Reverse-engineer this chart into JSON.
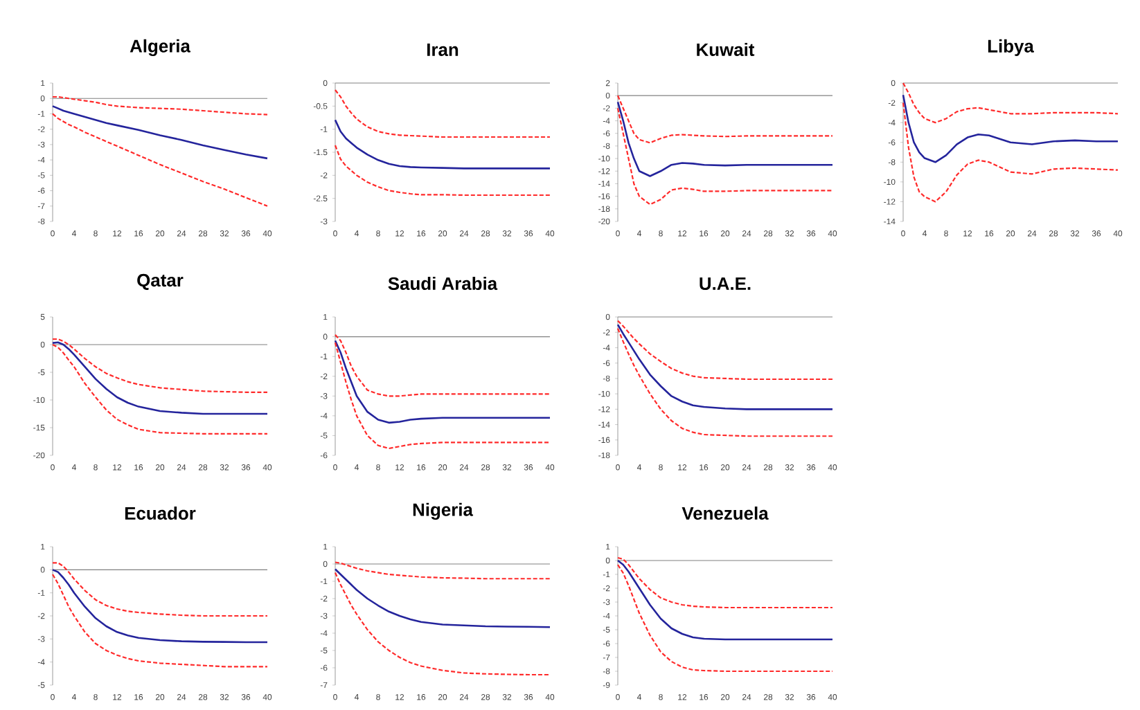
{
  "chart_data": [
    {
      "type": "line",
      "title": "Algeria",
      "x": [
        0,
        1,
        2,
        3,
        4,
        6,
        8,
        10,
        12,
        14,
        16,
        20,
        24,
        28,
        32,
        36,
        40
      ],
      "xlim": [
        0,
        40
      ],
      "xticks": [
        0,
        4,
        8,
        12,
        16,
        20,
        24,
        28,
        32,
        36,
        40
      ],
      "ylim": [
        -8,
        1
      ],
      "yticks": [
        -8,
        -7,
        -6,
        -5,
        -4,
        -3,
        -2,
        -1,
        0,
        1
      ],
      "ref_lines": [
        {
          "axis": "y",
          "value": 0,
          "color": "#808080"
        }
      ],
      "series": [
        {
          "color": "#ff2a2a",
          "line_style": "dashed",
          "values": [
            0.1,
            0.1,
            0.05,
            0,
            -0.05,
            -0.15,
            -0.25,
            -0.4,
            -0.5,
            -0.55,
            -0.6,
            -0.65,
            -0.7,
            -0.8,
            -0.9,
            -1.0,
            -1.05
          ]
        },
        {
          "color": "#24249c",
          "line_style": "solid",
          "values": [
            -0.5,
            -0.65,
            -0.8,
            -0.9,
            -1.0,
            -1.2,
            -1.4,
            -1.6,
            -1.75,
            -1.9,
            -2.05,
            -2.4,
            -2.7,
            -3.05,
            -3.35,
            -3.65,
            -3.9
          ]
        },
        {
          "color": "#ff2a2a",
          "line_style": "dashed",
          "values": [
            -1.0,
            -1.3,
            -1.5,
            -1.7,
            -1.85,
            -2.2,
            -2.5,
            -2.8,
            -3.1,
            -3.4,
            -3.7,
            -4.3,
            -4.85,
            -5.4,
            -5.9,
            -6.45,
            -7.0
          ]
        }
      ]
    },
    {
      "type": "line",
      "title": "Iran",
      "x": [
        0,
        1,
        2,
        3,
        4,
        6,
        8,
        10,
        12,
        14,
        16,
        20,
        24,
        28,
        32,
        36,
        40
      ],
      "xlim": [
        0,
        40
      ],
      "xticks": [
        0,
        4,
        8,
        12,
        16,
        20,
        24,
        28,
        32,
        36,
        40
      ],
      "ylim": [
        -3,
        0
      ],
      "yticks": [
        -3,
        -2.5,
        -2,
        -1.5,
        -1,
        -0.5,
        0
      ],
      "ref_lines": [
        {
          "axis": "y",
          "value": 0,
          "color": "#808080"
        }
      ],
      "series": [
        {
          "color": "#ff2a2a",
          "line_style": "dashed",
          "values": [
            -0.15,
            -0.3,
            -0.5,
            -0.65,
            -0.78,
            -0.95,
            -1.05,
            -1.1,
            -1.13,
            -1.14,
            -1.15,
            -1.17,
            -1.17,
            -1.17,
            -1.17,
            -1.17,
            -1.17
          ]
        },
        {
          "color": "#24249c",
          "line_style": "solid",
          "values": [
            -0.8,
            -1.05,
            -1.2,
            -1.3,
            -1.4,
            -1.55,
            -1.67,
            -1.75,
            -1.8,
            -1.82,
            -1.83,
            -1.84,
            -1.85,
            -1.85,
            -1.85,
            -1.85,
            -1.85
          ]
        },
        {
          "color": "#ff2a2a",
          "line_style": "dashed",
          "values": [
            -1.35,
            -1.65,
            -1.8,
            -1.9,
            -2.0,
            -2.15,
            -2.25,
            -2.33,
            -2.37,
            -2.4,
            -2.42,
            -2.42,
            -2.43,
            -2.43,
            -2.43,
            -2.43,
            -2.43
          ]
        }
      ]
    },
    {
      "type": "line",
      "title": "Kuwait",
      "x": [
        0,
        1,
        2,
        3,
        4,
        6,
        8,
        10,
        12,
        14,
        16,
        20,
        24,
        28,
        32,
        36,
        40
      ],
      "xlim": [
        0,
        40
      ],
      "xticks": [
        0,
        4,
        8,
        12,
        16,
        20,
        24,
        28,
        32,
        36,
        40
      ],
      "ylim": [
        -20,
        2
      ],
      "yticks": [
        -20,
        -18,
        -16,
        -14,
        -12,
        -10,
        -8,
        -6,
        -4,
        -2,
        0,
        2
      ],
      "ref_lines": [
        {
          "axis": "y",
          "value": 0,
          "color": "#808080"
        }
      ],
      "series": [
        {
          "color": "#ff2a2a",
          "line_style": "dashed",
          "values": [
            0,
            -2,
            -4,
            -6,
            -7,
            -7.5,
            -6.8,
            -6.3,
            -6.2,
            -6.3,
            -6.4,
            -6.5,
            -6.4,
            -6.4,
            -6.4,
            -6.4,
            -6.4
          ]
        },
        {
          "color": "#24249c",
          "line_style": "solid",
          "values": [
            -1,
            -4,
            -7.5,
            -10,
            -12,
            -12.8,
            -12,
            -11,
            -10.7,
            -10.8,
            -11,
            -11.1,
            -11,
            -11,
            -11,
            -11,
            -11
          ]
        },
        {
          "color": "#ff2a2a",
          "line_style": "dashed",
          "values": [
            -2,
            -6,
            -10,
            -14,
            -16,
            -17.3,
            -16.5,
            -15,
            -14.7,
            -14.9,
            -15.2,
            -15.2,
            -15.1,
            -15.1,
            -15.1,
            -15.1,
            -15.1
          ]
        }
      ]
    },
    {
      "type": "line",
      "title": "Libya",
      "x": [
        0,
        1,
        2,
        3,
        4,
        6,
        8,
        10,
        12,
        14,
        16,
        20,
        24,
        28,
        32,
        36,
        40
      ],
      "xlim": [
        0,
        40
      ],
      "xticks": [
        0,
        4,
        8,
        12,
        16,
        20,
        24,
        28,
        32,
        36,
        40
      ],
      "ylim": [
        -14,
        0
      ],
      "yticks": [
        -14,
        -12,
        -10,
        -8,
        -6,
        -4,
        -2,
        0
      ],
      "ref_lines": [
        {
          "axis": "y",
          "value": 0,
          "color": "#808080"
        }
      ],
      "series": [
        {
          "color": "#ff2a2a",
          "line_style": "dashed",
          "values": [
            0,
            -1,
            -2.2,
            -3,
            -3.6,
            -4,
            -3.6,
            -2.9,
            -2.6,
            -2.5,
            -2.7,
            -3.1,
            -3.1,
            -3,
            -3,
            -3,
            -3.1
          ]
        },
        {
          "color": "#24249c",
          "line_style": "solid",
          "values": [
            -1.2,
            -4,
            -6,
            -7,
            -7.6,
            -8,
            -7.3,
            -6.2,
            -5.5,
            -5.2,
            -5.3,
            -6,
            -6.2,
            -5.9,
            -5.8,
            -5.9,
            -5.9
          ]
        },
        {
          "color": "#ff2a2a",
          "line_style": "dashed",
          "values": [
            -2,
            -6.5,
            -9.5,
            -11,
            -11.5,
            -12,
            -11,
            -9.3,
            -8.2,
            -7.8,
            -8,
            -9,
            -9.2,
            -8.7,
            -8.6,
            -8.7,
            -8.8
          ]
        }
      ]
    },
    {
      "type": "line",
      "title": "Qatar",
      "x": [
        0,
        1,
        2,
        3,
        4,
        6,
        8,
        10,
        12,
        14,
        16,
        20,
        24,
        28,
        32,
        36,
        40
      ],
      "xlim": [
        0,
        40
      ],
      "xticks": [
        0,
        4,
        8,
        12,
        16,
        20,
        24,
        28,
        32,
        36,
        40
      ],
      "ylim": [
        -20,
        5
      ],
      "yticks": [
        -20,
        -15,
        -10,
        -5,
        0,
        5
      ],
      "ref_lines": [
        {
          "axis": "y",
          "value": 0,
          "color": "#808080"
        }
      ],
      "series": [
        {
          "color": "#ff2a2a",
          "line_style": "dashed",
          "values": [
            1,
            1,
            0.6,
            0,
            -0.8,
            -2.5,
            -4,
            -5.2,
            -6,
            -6.7,
            -7.2,
            -7.8,
            -8.1,
            -8.4,
            -8.5,
            -8.6,
            -8.6
          ]
        },
        {
          "color": "#24249c",
          "line_style": "solid",
          "values": [
            0.3,
            0.4,
            0,
            -0.8,
            -1.8,
            -4,
            -6.2,
            -8,
            -9.5,
            -10.5,
            -11.2,
            -12,
            -12.3,
            -12.5,
            -12.5,
            -12.5,
            -12.5
          ]
        },
        {
          "color": "#ff2a2a",
          "line_style": "dashed",
          "values": [
            0,
            -0.5,
            -1.5,
            -2.8,
            -4,
            -7,
            -9.5,
            -11.8,
            -13.5,
            -14.5,
            -15.3,
            -15.9,
            -16,
            -16.1,
            -16.1,
            -16.1,
            -16.1
          ]
        }
      ]
    },
    {
      "type": "line",
      "title": "Saudi Arabia",
      "x": [
        0,
        1,
        2,
        3,
        4,
        6,
        8,
        10,
        12,
        14,
        16,
        20,
        24,
        28,
        32,
        36,
        40
      ],
      "xlim": [
        0,
        40
      ],
      "xticks": [
        0,
        4,
        8,
        12,
        16,
        20,
        24,
        28,
        32,
        36,
        40
      ],
      "ylim": [
        -6,
        1
      ],
      "yticks": [
        -6,
        -5,
        -4,
        -3,
        -2,
        -1,
        0,
        1
      ],
      "ref_lines": [
        {
          "axis": "y",
          "value": 0,
          "color": "#808080"
        }
      ],
      "series": [
        {
          "color": "#ff2a2a",
          "line_style": "dashed",
          "values": [
            0.1,
            -0.2,
            -0.8,
            -1.5,
            -2,
            -2.7,
            -2.9,
            -3,
            -3,
            -2.95,
            -2.9,
            -2.9,
            -2.9,
            -2.9,
            -2.9,
            -2.9,
            -2.9
          ]
        },
        {
          "color": "#24249c",
          "line_style": "solid",
          "values": [
            -0.2,
            -0.8,
            -1.6,
            -2.3,
            -3,
            -3.8,
            -4.2,
            -4.35,
            -4.3,
            -4.2,
            -4.15,
            -4.1,
            -4.1,
            -4.1,
            -4.1,
            -4.1,
            -4.1
          ]
        },
        {
          "color": "#ff2a2a",
          "line_style": "dashed",
          "values": [
            -0.3,
            -1.3,
            -2.3,
            -3.2,
            -4,
            -5,
            -5.5,
            -5.65,
            -5.55,
            -5.45,
            -5.4,
            -5.35,
            -5.35,
            -5.35,
            -5.35,
            -5.35,
            -5.35
          ]
        }
      ]
    },
    {
      "type": "line",
      "title": "U.A.E.",
      "x": [
        0,
        1,
        2,
        3,
        4,
        6,
        8,
        10,
        12,
        14,
        16,
        20,
        24,
        28,
        32,
        36,
        40
      ],
      "xlim": [
        0,
        40
      ],
      "xticks": [
        0,
        4,
        8,
        12,
        16,
        20,
        24,
        28,
        32,
        36,
        40
      ],
      "ylim": [
        -18,
        0
      ],
      "yticks": [
        -18,
        -16,
        -14,
        -12,
        -10,
        -8,
        -6,
        -4,
        -2,
        0
      ],
      "ref_lines": [
        {
          "axis": "y",
          "value": 0,
          "color": "#808080"
        }
      ],
      "series": [
        {
          "color": "#ff2a2a",
          "line_style": "dashed",
          "values": [
            -0.5,
            -1.2,
            -2,
            -2.8,
            -3.5,
            -4.8,
            -5.8,
            -6.7,
            -7.3,
            -7.7,
            -7.9,
            -8,
            -8.1,
            -8.1,
            -8.1,
            -8.1,
            -8.1
          ]
        },
        {
          "color": "#24249c",
          "line_style": "solid",
          "values": [
            -1,
            -2.2,
            -3.3,
            -4.4,
            -5.5,
            -7.5,
            -9,
            -10.3,
            -11,
            -11.5,
            -11.7,
            -11.9,
            -12,
            -12,
            -12,
            -12,
            -12
          ]
        },
        {
          "color": "#ff2a2a",
          "line_style": "dashed",
          "values": [
            -1.5,
            -3.2,
            -4.8,
            -6.3,
            -7.6,
            -10,
            -12,
            -13.5,
            -14.5,
            -15,
            -15.3,
            -15.4,
            -15.5,
            -15.5,
            -15.5,
            -15.5,
            -15.5
          ]
        }
      ]
    },
    {
      "type": "line",
      "title": "Ecuador",
      "x": [
        0,
        1,
        2,
        3,
        4,
        6,
        8,
        10,
        12,
        14,
        16,
        20,
        24,
        28,
        32,
        36,
        40
      ],
      "xlim": [
        0,
        40
      ],
      "xticks": [
        0,
        4,
        8,
        12,
        16,
        20,
        24,
        28,
        32,
        36,
        40
      ],
      "ylim": [
        -5,
        1
      ],
      "yticks": [
        -5,
        -4,
        -3,
        -2,
        -1,
        0,
        1
      ],
      "ref_lines": [
        {
          "axis": "y",
          "value": 0,
          "color": "#808080"
        }
      ],
      "series": [
        {
          "color": "#ff2a2a",
          "line_style": "dashed",
          "values": [
            0.3,
            0.3,
            0.15,
            -0.1,
            -0.4,
            -0.9,
            -1.3,
            -1.55,
            -1.7,
            -1.8,
            -1.85,
            -1.92,
            -1.97,
            -2,
            -2,
            -2,
            -2
          ]
        },
        {
          "color": "#24249c",
          "line_style": "solid",
          "values": [
            0,
            -0.1,
            -0.35,
            -0.65,
            -1,
            -1.6,
            -2.1,
            -2.45,
            -2.7,
            -2.85,
            -2.95,
            -3.05,
            -3.1,
            -3.12,
            -3.13,
            -3.14,
            -3.14
          ]
        },
        {
          "color": "#ff2a2a",
          "line_style": "dashed",
          "values": [
            -0.2,
            -0.6,
            -1.1,
            -1.6,
            -2,
            -2.7,
            -3.2,
            -3.5,
            -3.7,
            -3.85,
            -3.95,
            -4.05,
            -4.1,
            -4.15,
            -4.2,
            -4.2,
            -4.2
          ]
        }
      ]
    },
    {
      "type": "line",
      "title": "Nigeria",
      "x": [
        0,
        1,
        2,
        3,
        4,
        6,
        8,
        10,
        12,
        14,
        16,
        20,
        24,
        28,
        32,
        36,
        40
      ],
      "xlim": [
        0,
        40
      ],
      "xticks": [
        0,
        4,
        8,
        12,
        16,
        20,
        24,
        28,
        32,
        36,
        40
      ],
      "ylim": [
        -7,
        1
      ],
      "yticks": [
        -7,
        -6,
        -5,
        -4,
        -3,
        -2,
        -1,
        0,
        1
      ],
      "ref_lines": [
        {
          "axis": "y",
          "value": 0,
          "color": "#808080"
        }
      ],
      "series": [
        {
          "color": "#ff2a2a",
          "line_style": "dashed",
          "values": [
            0.1,
            0.05,
            -0.05,
            -0.15,
            -0.25,
            -0.4,
            -0.5,
            -0.6,
            -0.65,
            -0.7,
            -0.75,
            -0.8,
            -0.82,
            -0.85,
            -0.85,
            -0.85,
            -0.85
          ]
        },
        {
          "color": "#24249c",
          "line_style": "solid",
          "values": [
            -0.3,
            -0.6,
            -0.9,
            -1.2,
            -1.5,
            -2,
            -2.4,
            -2.75,
            -3,
            -3.2,
            -3.35,
            -3.5,
            -3.55,
            -3.6,
            -3.62,
            -3.63,
            -3.65
          ]
        },
        {
          "color": "#ff2a2a",
          "line_style": "dashed",
          "values": [
            -0.5,
            -1.2,
            -1.8,
            -2.4,
            -2.9,
            -3.8,
            -4.5,
            -5,
            -5.4,
            -5.7,
            -5.9,
            -6.15,
            -6.3,
            -6.35,
            -6.38,
            -6.4,
            -6.4
          ]
        }
      ]
    },
    {
      "type": "line",
      "title": "Venezuela",
      "x": [
        0,
        1,
        2,
        3,
        4,
        6,
        8,
        10,
        12,
        14,
        16,
        20,
        24,
        28,
        32,
        36,
        40
      ],
      "xlim": [
        0,
        40
      ],
      "xticks": [
        0,
        4,
        8,
        12,
        16,
        20,
        24,
        28,
        32,
        36,
        40
      ],
      "ylim": [
        -9,
        1
      ],
      "yticks": [
        -9,
        -8,
        -7,
        -6,
        -5,
        -4,
        -3,
        -2,
        -1,
        0,
        1
      ],
      "ref_lines": [
        {
          "axis": "y",
          "value": 0,
          "color": "#808080"
        }
      ],
      "series": [
        {
          "color": "#ff2a2a",
          "line_style": "dashed",
          "values": [
            0.2,
            0.1,
            -0.3,
            -0.8,
            -1.3,
            -2.1,
            -2.7,
            -3,
            -3.2,
            -3.3,
            -3.35,
            -3.4,
            -3.4,
            -3.4,
            -3.4,
            -3.4,
            -3.4
          ]
        },
        {
          "color": "#24249c",
          "line_style": "solid",
          "values": [
            0,
            -0.3,
            -0.8,
            -1.4,
            -2,
            -3.2,
            -4.2,
            -4.9,
            -5.3,
            -5.55,
            -5.65,
            -5.7,
            -5.7,
            -5.7,
            -5.7,
            -5.7,
            -5.7
          ]
        },
        {
          "color": "#ff2a2a",
          "line_style": "dashed",
          "values": [
            -0.3,
            -0.9,
            -1.8,
            -2.8,
            -3.8,
            -5.4,
            -6.6,
            -7.3,
            -7.7,
            -7.9,
            -7.95,
            -8,
            -8,
            -8,
            -8,
            -8,
            -8
          ]
        }
      ]
    }
  ]
}
